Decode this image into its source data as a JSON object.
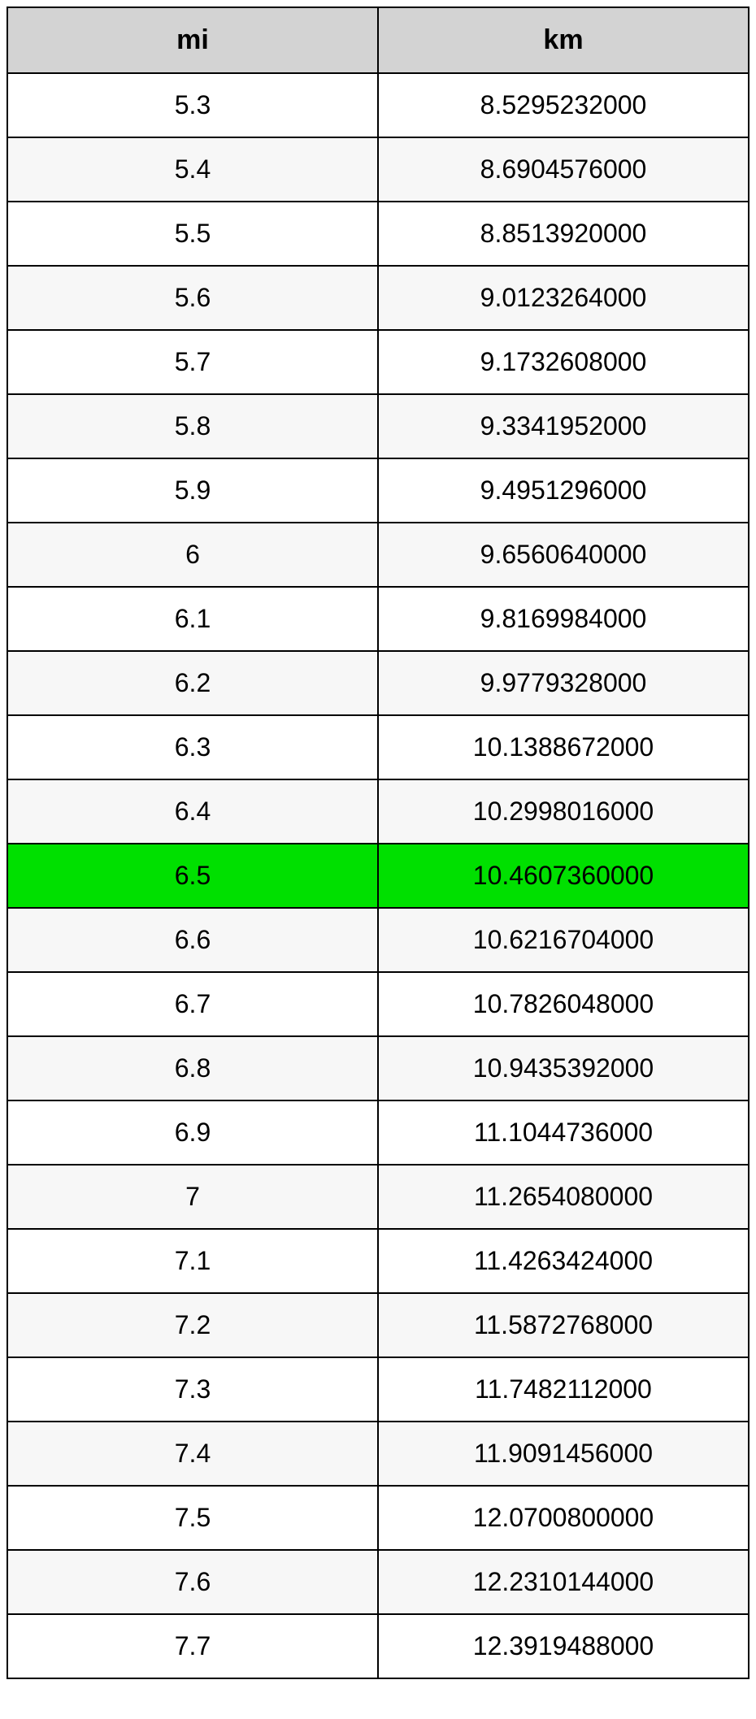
{
  "table": {
    "type": "table",
    "columns": [
      "mi",
      "km"
    ],
    "header_background": "#d3d3d3",
    "header_fontsize": 34,
    "header_fontweight": "bold",
    "cell_fontsize": 32,
    "border_color": "#000000",
    "border_width": 2,
    "row_bg_odd": "#ffffff",
    "row_bg_even": "#f7f7f7",
    "highlight_bg": "#00e000",
    "highlight_index": 12,
    "column_widths": [
      "50%",
      "50%"
    ],
    "text_align": "center",
    "rows": [
      {
        "mi": "5.3",
        "km": "8.5295232000",
        "highlight": false
      },
      {
        "mi": "5.4",
        "km": "8.6904576000",
        "highlight": false
      },
      {
        "mi": "5.5",
        "km": "8.8513920000",
        "highlight": false
      },
      {
        "mi": "5.6",
        "km": "9.0123264000",
        "highlight": false
      },
      {
        "mi": "5.7",
        "km": "9.1732608000",
        "highlight": false
      },
      {
        "mi": "5.8",
        "km": "9.3341952000",
        "highlight": false
      },
      {
        "mi": "5.9",
        "km": "9.4951296000",
        "highlight": false
      },
      {
        "mi": "6",
        "km": "9.6560640000",
        "highlight": false
      },
      {
        "mi": "6.1",
        "km": "9.8169984000",
        "highlight": false
      },
      {
        "mi": "6.2",
        "km": "9.9779328000",
        "highlight": false
      },
      {
        "mi": "6.3",
        "km": "10.1388672000",
        "highlight": false
      },
      {
        "mi": "6.4",
        "km": "10.2998016000",
        "highlight": false
      },
      {
        "mi": "6.5",
        "km": "10.4607360000",
        "highlight": true
      },
      {
        "mi": "6.6",
        "km": "10.6216704000",
        "highlight": false
      },
      {
        "mi": "6.7",
        "km": "10.7826048000",
        "highlight": false
      },
      {
        "mi": "6.8",
        "km": "10.9435392000",
        "highlight": false
      },
      {
        "mi": "6.9",
        "km": "11.1044736000",
        "highlight": false
      },
      {
        "mi": "7",
        "km": "11.2654080000",
        "highlight": false
      },
      {
        "mi": "7.1",
        "km": "11.4263424000",
        "highlight": false
      },
      {
        "mi": "7.2",
        "km": "11.5872768000",
        "highlight": false
      },
      {
        "mi": "7.3",
        "km": "11.7482112000",
        "highlight": false
      },
      {
        "mi": "7.4",
        "km": "11.9091456000",
        "highlight": false
      },
      {
        "mi": "7.5",
        "km": "12.0700800000",
        "highlight": false
      },
      {
        "mi": "7.6",
        "km": "12.2310144000",
        "highlight": false
      },
      {
        "mi": "7.7",
        "km": "12.3919488000",
        "highlight": false
      }
    ]
  }
}
